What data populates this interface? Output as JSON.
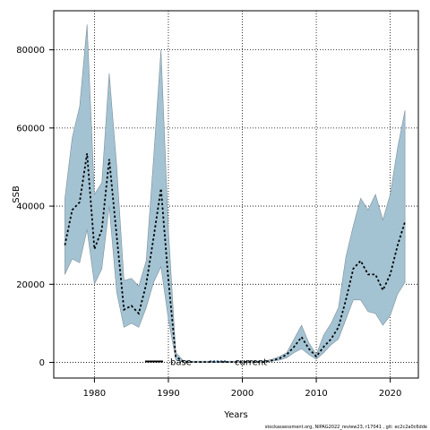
{
  "chart_data": {
    "type": "area",
    "xlabel": "Years",
    "ylabel": "SSB",
    "xlim": [
      1974.5,
      2023.8
    ],
    "ylim": [
      -4000,
      90000
    ],
    "x_ticks": [
      1980,
      1990,
      2000,
      2010,
      2020
    ],
    "y_ticks": [
      0,
      20000,
      40000,
      60000,
      80000
    ],
    "x_tick_labels": [
      "1980",
      "1990",
      "2000",
      "2010",
      "2020"
    ],
    "y_tick_labels": [
      "0",
      "20000",
      "40000",
      "60000",
      "80000"
    ],
    "grid": true,
    "legend_position": "bottom-center",
    "legend": [
      {
        "label": "base",
        "style": "solid",
        "color": "#000000"
      },
      {
        "label": "current",
        "style": "dotted",
        "color": "#0a2d4a"
      }
    ],
    "band_color": "#a3c3d3",
    "x": [
      1976,
      1977,
      1978,
      1979,
      1980,
      1981,
      1982,
      1983,
      1984,
      1985,
      1986,
      1987,
      1988,
      1989,
      1990,
      1991,
      1992,
      1993,
      1994,
      1995,
      1996,
      1997,
      1998,
      1999,
      2000,
      2001,
      2002,
      2003,
      2004,
      2005,
      2006,
      2007,
      2008,
      2009,
      2010,
      2011,
      2012,
      2013,
      2014,
      2015,
      2016,
      2017,
      2018,
      2019,
      2020,
      2021,
      2022
    ],
    "series": [
      {
        "name": "current",
        "values": [
          30000,
          39000,
          41000,
          53500,
          29000,
          34000,
          52000,
          32500,
          13500,
          14500,
          12500,
          20000,
          32000,
          44500,
          21000,
          1500,
          200,
          100,
          100,
          100,
          100,
          100,
          100,
          100,
          100,
          100,
          100,
          100,
          500,
          1000,
          2000,
          4000,
          6500,
          3500,
          1500,
          4000,
          6000,
          9000,
          16000,
          24000,
          26000,
          22500,
          22500,
          18500,
          22500,
          30000,
          36000
        ]
      }
    ],
    "band_upper": [
      42000,
      57500,
      65500,
      86500,
      43000,
      46000,
      74000,
      50500,
      21000,
      21500,
      19500,
      26000,
      52500,
      80000,
      34000,
      2500,
      500,
      300,
      300,
      300,
      300,
      300,
      300,
      300,
      300,
      300,
      300,
      300,
      800,
      1500,
      2500,
      6000,
      9500,
      5000,
      2000,
      7000,
      10000,
      14000,
      27000,
      35000,
      42000,
      39000,
      43000,
      36500,
      43000,
      55000,
      64500
    ],
    "band_lower": [
      22500,
      26500,
      25500,
      34000,
      20000,
      24000,
      40000,
      18000,
      9000,
      10000,
      9000,
      14000,
      20500,
      24500,
      11000,
      700,
      50,
      30,
      30,
      30,
      30,
      30,
      30,
      30,
      30,
      30,
      30,
      30,
      300,
      600,
      1200,
      2500,
      3500,
      2000,
      800,
      2500,
      4500,
      6000,
      11000,
      16000,
      16000,
      13000,
      12500,
      9500,
      12000,
      17500,
      20500
    ]
  },
  "footnote": "stockassessment.org, NIPAG2022_review23, r17041 , git: ec2c2a0c6dde"
}
